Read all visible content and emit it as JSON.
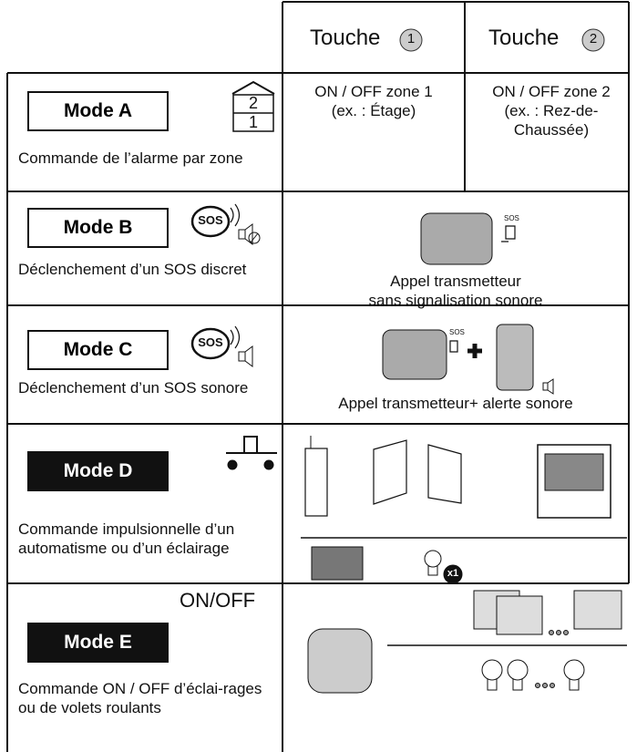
{
  "header": {
    "columns": [
      {
        "label": "Touche",
        "number": "1"
      },
      {
        "label": "Touche",
        "number": "2"
      }
    ]
  },
  "rows": [
    {
      "mode": "Mode A",
      "icon_labels": [
        "2",
        "1"
      ],
      "description": "Commande de l’alarme par zone",
      "touche_1": [
        "ON / OFF zone 1",
        "(ex. : Étage)"
      ],
      "touche_2": [
        "ON / OFF zone 2",
        "(ex. : Rez-de-Chaussée)"
      ]
    },
    {
      "mode": "Mode B",
      "icon_label": "SOS",
      "description": "Déclenchement d’un SOS discret",
      "badge": "SOS",
      "content": [
        "Appel transmetteur",
        "sans signalisation sonore"
      ]
    },
    {
      "mode": "Mode C",
      "icon_label": "SOS",
      "description": "Déclenchement d’un SOS sonore",
      "badge": "SOS",
      "content": [
        "Appel transmetteur+ alerte sonore"
      ]
    },
    {
      "mode": "Mode D",
      "description": "Commande impulsionnelle d’un automatisme ou d’un éclairage",
      "badge": "x1"
    },
    {
      "mode": "Mode E",
      "icon_label": "ON/OFF",
      "description": "Commande ON / OFF d’éclai-rages ou de volets roulants"
    }
  ]
}
